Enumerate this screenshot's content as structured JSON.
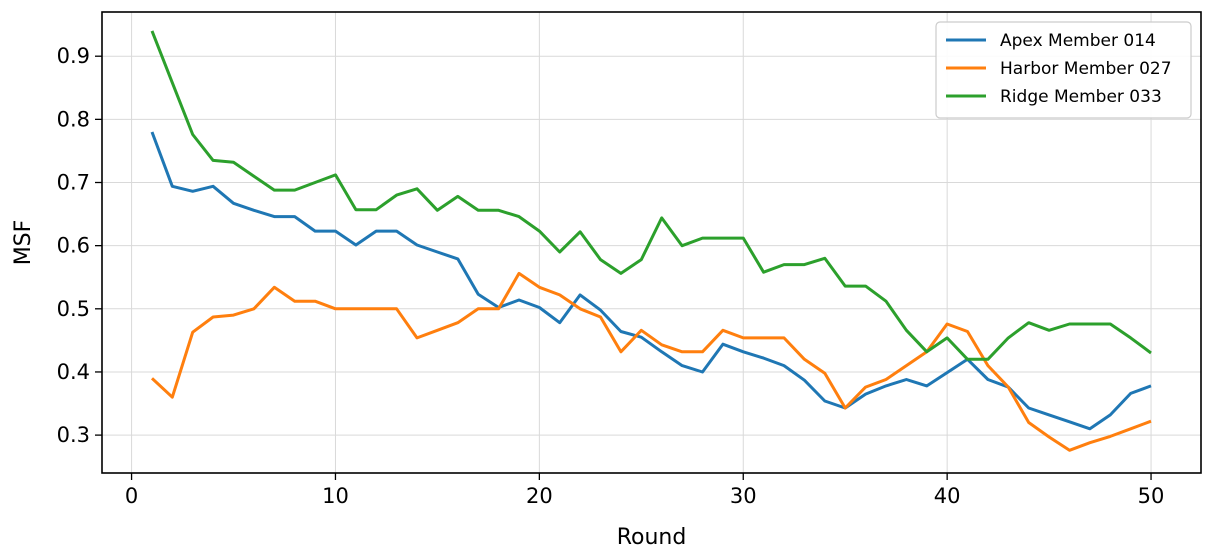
{
  "chart_data": {
    "type": "line",
    "title": "",
    "xlabel": "Round",
    "ylabel": "MSF",
    "xlim": [
      -1.45,
      52.45
    ],
    "ylim": [
      0.24,
      0.97
    ],
    "xticks": [
      0,
      10,
      20,
      30,
      40,
      50
    ],
    "xtick_labels": [
      "0",
      "10",
      "20",
      "30",
      "40",
      "50"
    ],
    "yticks": [
      0.3,
      0.4,
      0.5,
      0.6,
      0.7,
      0.8,
      0.9
    ],
    "ytick_labels": [
      "0.3",
      "0.4",
      "0.5",
      "0.6",
      "0.7",
      "0.8",
      "0.9"
    ],
    "grid": true,
    "legend_position": "top-right",
    "x": [
      1,
      2,
      3,
      4,
      5,
      6,
      7,
      8,
      9,
      10,
      11,
      12,
      13,
      14,
      15,
      16,
      17,
      18,
      19,
      20,
      21,
      22,
      23,
      24,
      25,
      26,
      27,
      28,
      29,
      30,
      31,
      32,
      33,
      34,
      35,
      36,
      37,
      38,
      39,
      40,
      41,
      42,
      43,
      44,
      45,
      46,
      47,
      48,
      49,
      50
    ],
    "series": [
      {
        "name": "Apex Member 014",
        "color": "#1f77b4",
        "values": [
          0.78,
          0.694,
          0.686,
          0.694,
          0.667,
          0.656,
          0.646,
          0.646,
          0.623,
          0.623,
          0.601,
          0.623,
          0.623,
          0.601,
          0.59,
          0.579,
          0.523,
          0.502,
          0.514,
          0.502,
          0.478,
          0.522,
          0.498,
          0.464,
          0.455,
          0.432,
          0.41,
          0.4,
          0.444,
          0.432,
          0.422,
          0.41,
          0.387,
          0.354,
          0.343,
          0.365,
          0.378,
          0.388,
          0.378,
          0.399,
          0.42,
          0.388,
          0.376,
          0.343,
          0.332,
          0.321,
          0.31,
          0.332,
          0.366,
          0.378
        ]
      },
      {
        "name": "Harbor Member 027",
        "color": "#ff7f0e",
        "values": [
          0.39,
          0.36,
          0.463,
          0.487,
          0.49,
          0.5,
          0.534,
          0.512,
          0.512,
          0.5,
          0.5,
          0.5,
          0.5,
          0.454,
          0.466,
          0.478,
          0.5,
          0.5,
          0.556,
          0.534,
          0.522,
          0.5,
          0.487,
          0.432,
          0.466,
          0.443,
          0.432,
          0.432,
          0.466,
          0.454,
          0.454,
          0.454,
          0.42,
          0.398,
          0.343,
          0.376,
          0.388,
          0.41,
          0.432,
          0.476,
          0.464,
          0.41,
          0.376,
          0.32,
          0.297,
          0.276,
          0.288,
          0.298,
          0.31,
          0.322
        ]
      },
      {
        "name": "Ridge Member 033",
        "color": "#2ca02c",
        "values": [
          0.94,
          0.858,
          0.776,
          0.735,
          0.732,
          0.71,
          0.688,
          0.688,
          0.7,
          0.712,
          0.657,
          0.657,
          0.68,
          0.69,
          0.656,
          0.678,
          0.656,
          0.656,
          0.646,
          0.623,
          0.59,
          0.622,
          0.578,
          0.556,
          0.578,
          0.644,
          0.6,
          0.612,
          0.612,
          0.612,
          0.558,
          0.57,
          0.57,
          0.58,
          0.536,
          0.536,
          0.512,
          0.466,
          0.432,
          0.454,
          0.42,
          0.42,
          0.454,
          0.478,
          0.466,
          0.476,
          0.476,
          0.476,
          0.454,
          0.43
        ]
      }
    ]
  }
}
